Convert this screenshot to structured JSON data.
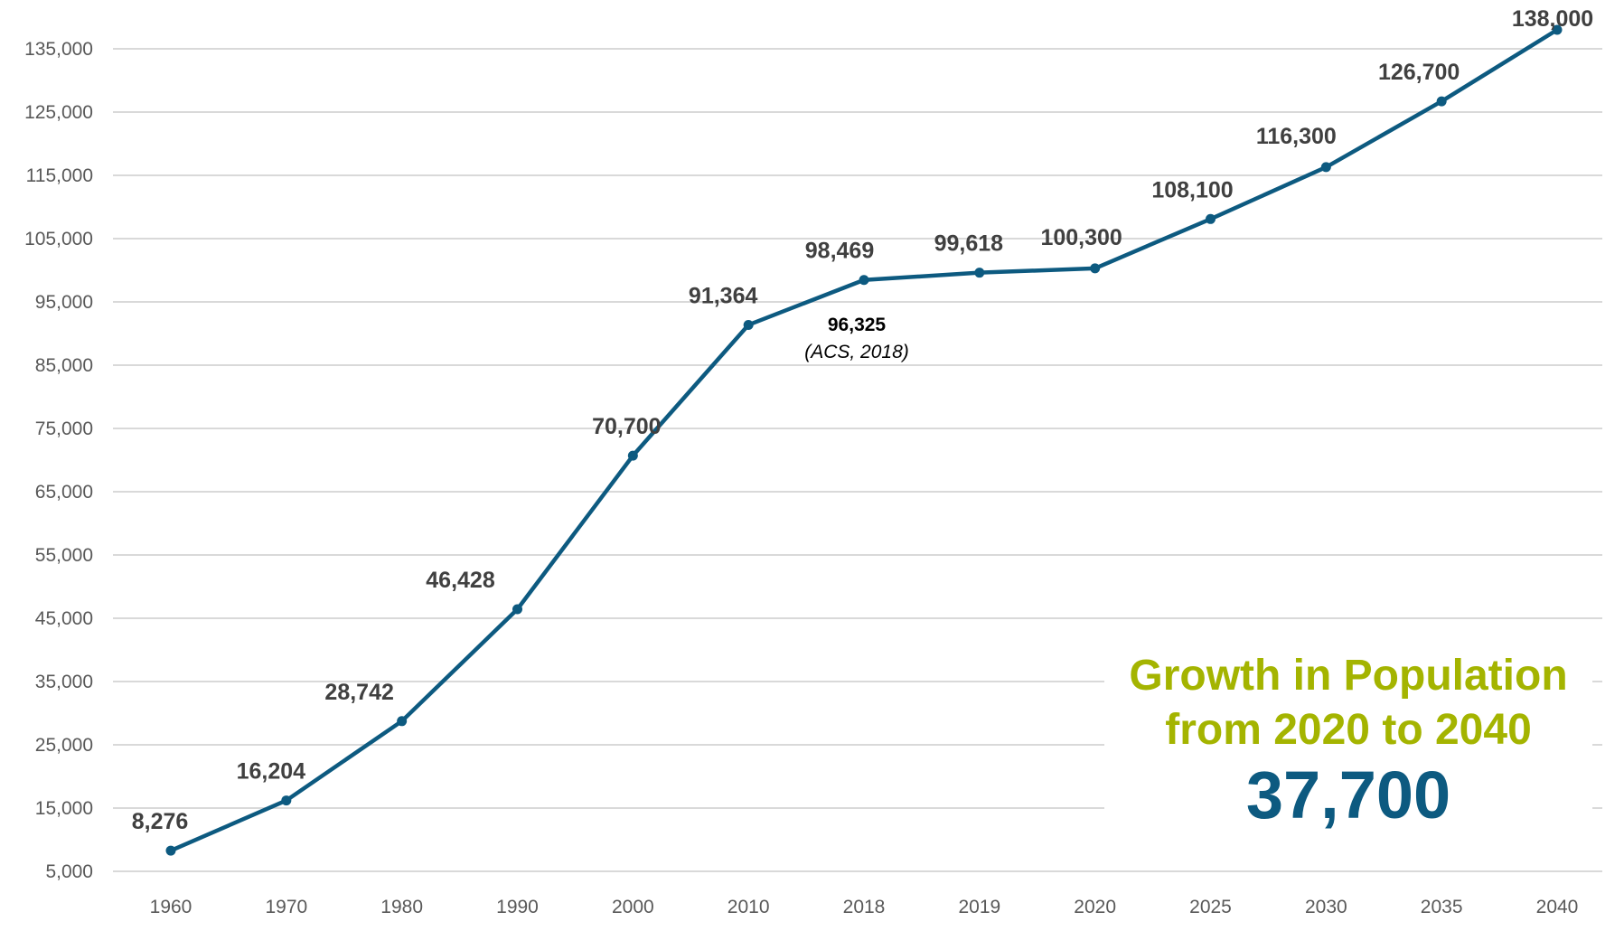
{
  "chart_data": {
    "type": "line",
    "title": "",
    "xlabel": "",
    "ylabel": "",
    "categories": [
      "1960",
      "1970",
      "1980",
      "1990",
      "2000",
      "2010",
      "2018",
      "2019",
      "2020",
      "2025",
      "2030",
      "2035",
      "2040"
    ],
    "series": [
      {
        "name": "Population",
        "values": [
          8276,
          16204,
          28742,
          46428,
          70700,
          91364,
          98469,
          99618,
          100300,
          108100,
          116300,
          126700,
          138000
        ],
        "data_labels": [
          "8,276",
          "16,204",
          "28,742",
          "46,428",
          "70,700",
          "91,364",
          "98,469",
          "99,618",
          "100,300",
          "108,100",
          "116,300",
          "126,700",
          "138,000"
        ]
      }
    ],
    "yticks": [
      5000,
      15000,
      25000,
      35000,
      45000,
      55000,
      65000,
      75000,
      85000,
      95000,
      105000,
      115000,
      125000,
      135000
    ],
    "ytick_labels": [
      "5,000",
      "15,000",
      "25,000",
      "35,000",
      "45,000",
      "55,000",
      "65,000",
      "75,000",
      "85,000",
      "95,000",
      "105,000",
      "115,000",
      "125,000",
      "135,000"
    ],
    "ylim": [
      5000,
      135000
    ],
    "grid": true,
    "legend": "none",
    "line_color": "#0d5a80",
    "annotations": [
      {
        "category": "2018",
        "value_text": "96,325",
        "source_text": "(ACS, 2018)"
      }
    ]
  },
  "callout": {
    "title_line1": "Growth in Population",
    "title_line2": "from 2020 to 2040",
    "value": "37,700",
    "title_color": "#a4b400",
    "value_color": "#0d5a80"
  }
}
